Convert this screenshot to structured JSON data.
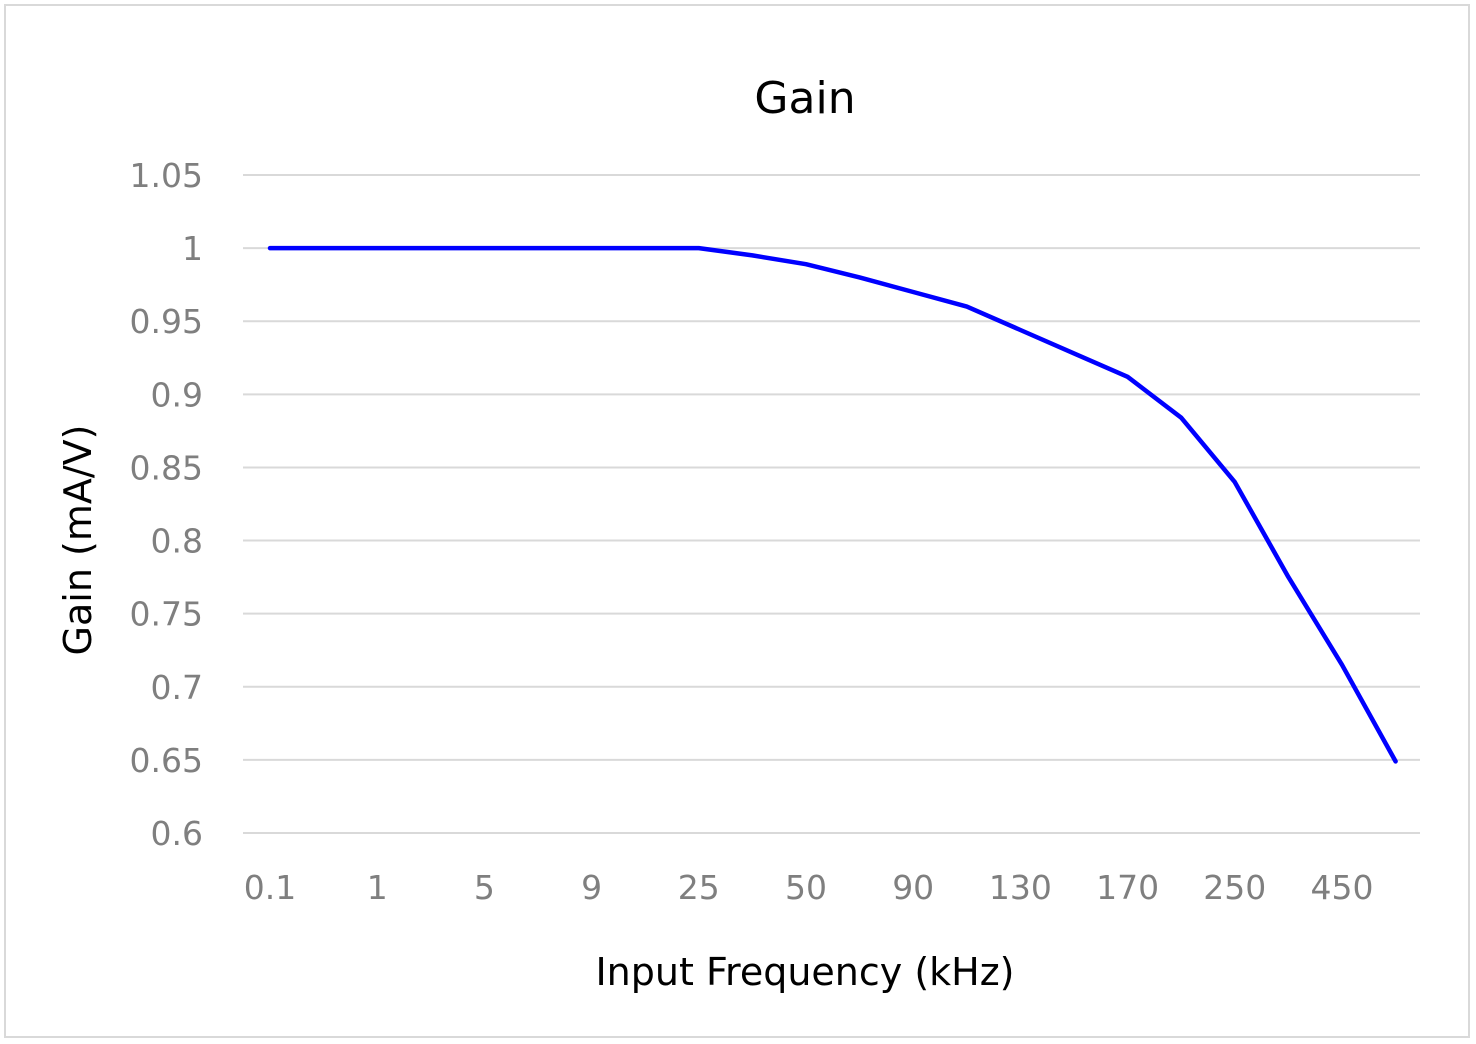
{
  "chart_data": {
    "type": "line",
    "title": "Gain",
    "xlabel": "Input Frequency (kHz)",
    "ylabel": "Gain (mA/V)",
    "x": [
      "0.1",
      "",
      "1",
      "",
      "5",
      "",
      "9",
      "",
      "25",
      "",
      "50",
      "",
      "90",
      "",
      "130",
      "",
      "170",
      "",
      "250",
      "",
      "450",
      ""
    ],
    "x_tick_labels": [
      "0.1",
      "1",
      "5",
      "9",
      "25",
      "50",
      "90",
      "130",
      "170",
      "250",
      "450"
    ],
    "ylim": [
      0.6,
      1.05
    ],
    "y_ticks": [
      "0.6",
      "0.65",
      "0.7",
      "0.75",
      "0.8",
      "0.85",
      "0.9",
      "0.95",
      "1",
      "1.05"
    ],
    "grid": true,
    "series": [
      {
        "color": "#0000ff",
        "values": [
          1,
          1,
          1,
          1,
          1,
          1,
          1,
          1,
          1,
          0.995,
          0.989,
          0.98,
          0.97,
          0.96,
          0.944,
          0.928,
          0.912,
          0.884,
          0.84,
          0.775,
          0.715,
          0.649
        ]
      }
    ]
  }
}
